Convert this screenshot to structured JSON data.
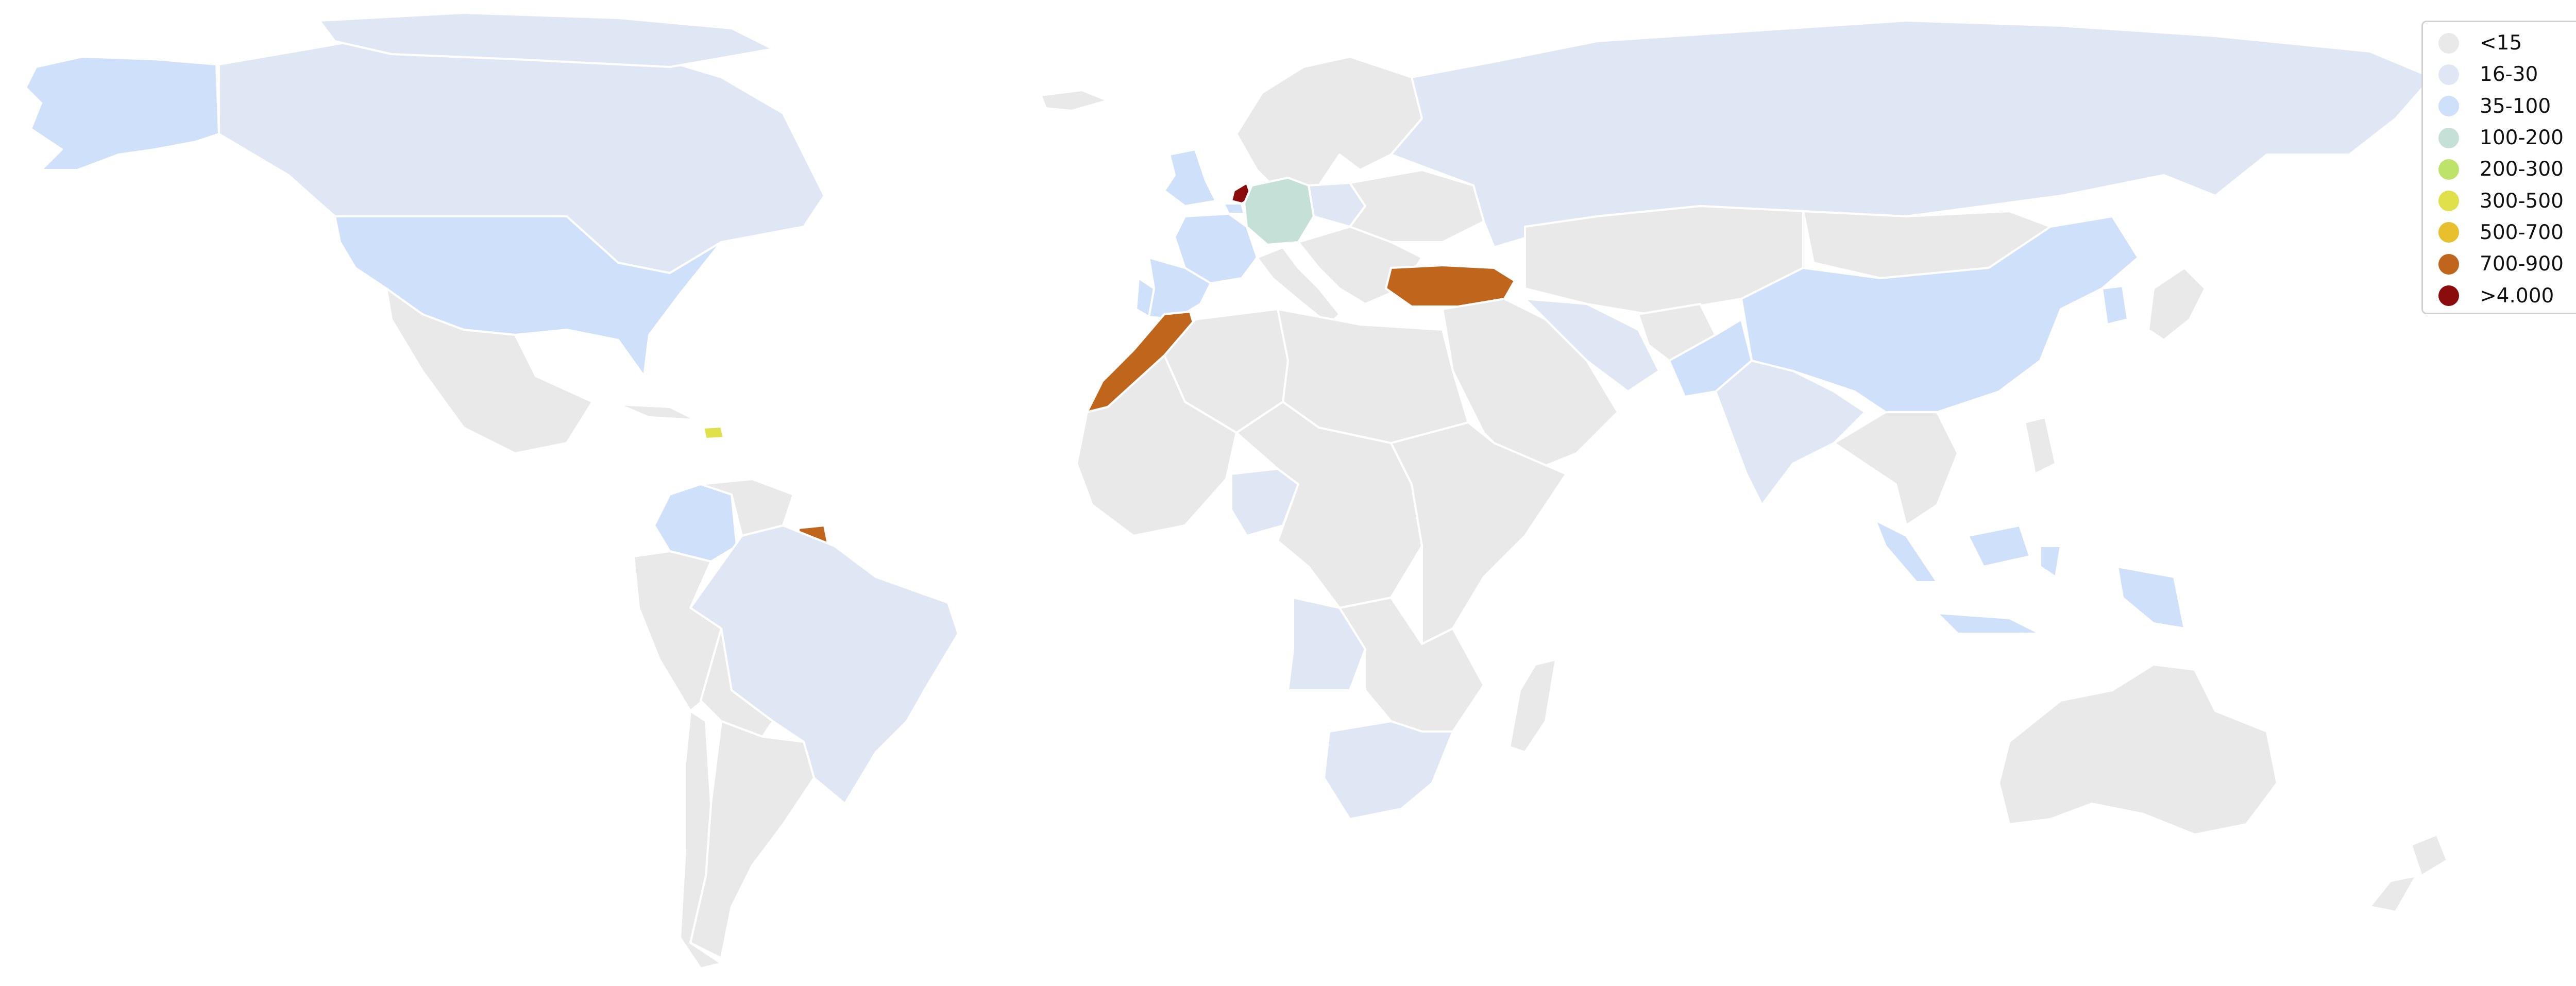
{
  "legend": {
    "items": [
      {
        "key": "lt15",
        "label": "<15",
        "color": "#e9e9e9"
      },
      {
        "key": "16_30",
        "label": "16-30",
        "color": "#dfe7f5"
      },
      {
        "key": "35_100",
        "label": "35-100",
        "color": "#cfe0fa"
      },
      {
        "key": "100_200",
        "label": "100-200",
        "color": "#c5e0d6"
      },
      {
        "key": "200_300",
        "label": "200-300",
        "color": "#bde36a"
      },
      {
        "key": "300_500",
        "label": "300-500",
        "color": "#dfe04a"
      },
      {
        "key": "500_700",
        "label": "500-700",
        "color": "#e8c02e"
      },
      {
        "key": "700_900",
        "label": "700-900",
        "color": "#c0661c"
      },
      {
        "key": "gt4000",
        "label": ">4.000",
        "color": "#8b0c0c"
      }
    ]
  },
  "countries": [
    {
      "id": "canada",
      "class": "16_30"
    },
    {
      "id": "alaska",
      "class": "35_100"
    },
    {
      "id": "greenland",
      "class": "16_30"
    },
    {
      "id": "usa",
      "class": "35_100"
    },
    {
      "id": "mexico",
      "class": "lt15"
    },
    {
      "id": "cuba",
      "class": "lt15"
    },
    {
      "id": "dominican-rep",
      "class": "300_500"
    },
    {
      "id": "colombia",
      "class": "35_100"
    },
    {
      "id": "venezuela",
      "class": "lt15"
    },
    {
      "id": "suriname",
      "class": "700_900"
    },
    {
      "id": "brazil",
      "class": "16_30"
    },
    {
      "id": "peru",
      "class": "lt15"
    },
    {
      "id": "bolivia",
      "class": "lt15"
    },
    {
      "id": "argentina",
      "class": "lt15"
    },
    {
      "id": "chile",
      "class": "lt15"
    },
    {
      "id": "iceland",
      "class": "lt15"
    },
    {
      "id": "uk",
      "class": "35_100"
    },
    {
      "id": "netherlands",
      "class": "gt4000"
    },
    {
      "id": "belgium",
      "class": "35_100"
    },
    {
      "id": "france",
      "class": "35_100"
    },
    {
      "id": "spain",
      "class": "35_100"
    },
    {
      "id": "portugal",
      "class": "35_100"
    },
    {
      "id": "germany",
      "class": "100_200"
    },
    {
      "id": "scandinavia",
      "class": "lt15"
    },
    {
      "id": "italy",
      "class": "lt15"
    },
    {
      "id": "poland",
      "class": "16_30"
    },
    {
      "id": "east-europe",
      "class": "lt15"
    },
    {
      "id": "balkans",
      "class": "lt15"
    },
    {
      "id": "russia",
      "class": "16_30"
    },
    {
      "id": "turkey",
      "class": "700_900"
    },
    {
      "id": "morocco",
      "class": "700_900"
    },
    {
      "id": "algeria",
      "class": "lt15"
    },
    {
      "id": "libya-egypt",
      "class": "lt15"
    },
    {
      "id": "west-africa",
      "class": "lt15"
    },
    {
      "id": "nigeria",
      "class": "16_30"
    },
    {
      "id": "central-africa",
      "class": "lt15"
    },
    {
      "id": "east-africa",
      "class": "lt15"
    },
    {
      "id": "angola",
      "class": "16_30"
    },
    {
      "id": "south-africa",
      "class": "16_30"
    },
    {
      "id": "southern-africa",
      "class": "lt15"
    },
    {
      "id": "madagascar",
      "class": "lt15"
    },
    {
      "id": "middle-east",
      "class": "lt15"
    },
    {
      "id": "iran",
      "class": "16_30"
    },
    {
      "id": "central-asia",
      "class": "lt15"
    },
    {
      "id": "afghanistan",
      "class": "lt15"
    },
    {
      "id": "pakistan",
      "class": "35_100"
    },
    {
      "id": "india",
      "class": "16_30"
    },
    {
      "id": "china",
      "class": "35_100"
    },
    {
      "id": "mongolia",
      "class": "lt15"
    },
    {
      "id": "japan",
      "class": "lt15"
    },
    {
      "id": "korea",
      "class": "35_100"
    },
    {
      "id": "se-asia",
      "class": "lt15"
    },
    {
      "id": "indonesia",
      "class": "35_100"
    },
    {
      "id": "new-guinea",
      "class": "35_100"
    },
    {
      "id": "philippines",
      "class": "lt15"
    },
    {
      "id": "australia",
      "class": "lt15"
    },
    {
      "id": "new-zealand",
      "class": "lt15"
    }
  ]
}
